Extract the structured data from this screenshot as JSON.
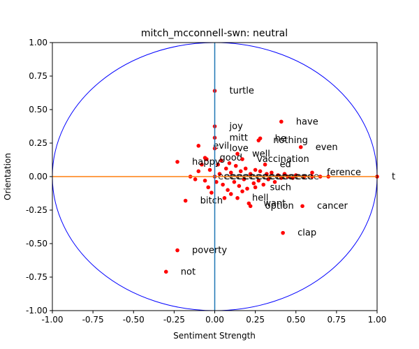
{
  "chart_data": {
    "type": "scatter",
    "title": "mitch_mcconnell-swn: neutral",
    "xlabel": "Sentiment Strength",
    "ylabel": "Orientation",
    "xlim": [
      -1.0,
      1.0
    ],
    "ylim": [
      -1.0,
      1.0
    ],
    "xticks": [
      "-1.00",
      "-0.75",
      "-0.50",
      "-0.25",
      "0.00",
      "0.25",
      "0.50",
      "0.75",
      "1.00"
    ],
    "yticks": [
      "-1.00",
      "-0.75",
      "-0.50",
      "-0.25",
      "0.00",
      "0.25",
      "0.50",
      "0.75",
      "1.00"
    ],
    "grid": false,
    "colors": {
      "points": "#ff0000",
      "circle": "#0000ff",
      "horizontal_line": "#ff7f0e",
      "vertical_line": "#1f77b4"
    },
    "labeled_points": [
      {
        "label": "turtle",
        "x": 0.0,
        "y": 0.64
      },
      {
        "label": "have",
        "x": 0.41,
        "y": 0.41
      },
      {
        "label": "joy",
        "x": 0.0,
        "y": 0.375
      },
      {
        "label": "mitt",
        "x": 0.0,
        "y": 0.29
      },
      {
        "label": "he",
        "x": 0.28,
        "y": 0.285
      },
      {
        "label": "nothing",
        "x": 0.27,
        "y": 0.27
      },
      {
        "label": "even",
        "x": 0.53,
        "y": 0.22
      },
      {
        "label": "evil",
        "x": -0.1,
        "y": 0.23
      },
      {
        "label": "love",
        "x": 0.0,
        "y": 0.21
      },
      {
        "label": "well",
        "x": 0.14,
        "y": 0.17
      },
      {
        "label": "good",
        "x": -0.06,
        "y": 0.14
      },
      {
        "label": "happy",
        "x": -0.23,
        "y": 0.11
      },
      {
        "label": "vaccination",
        "x": 0.17,
        "y": 0.13
      },
      {
        "label": "ed",
        "x": 0.31,
        "y": 0.09
      },
      {
        "label": "ference",
        "x": 0.6,
        "y": 0.03
      },
      {
        "label": "t",
        "x": 1.0,
        "y": 0.0
      },
      {
        "label": "such",
        "x": 0.25,
        "y": -0.08
      },
      {
        "label": "bitch",
        "x": -0.18,
        "y": -0.18
      },
      {
        "label": "hell",
        "x": 0.14,
        "y": -0.16
      },
      {
        "label": "want",
        "x": 0.21,
        "y": -0.2
      },
      {
        "label": "option",
        "x": 0.22,
        "y": -0.22
      },
      {
        "label": "cancer",
        "x": 0.54,
        "y": -0.22
      },
      {
        "label": "clap",
        "x": 0.42,
        "y": -0.42
      },
      {
        "label": "poverty",
        "x": -0.23,
        "y": -0.55
      },
      {
        "label": "not",
        "x": -0.3,
        "y": -0.71
      }
    ],
    "cluster_points": [
      {
        "x": 0.0,
        "y": 0.0
      },
      {
        "x": -0.03,
        "y": 0.05
      },
      {
        "x": -0.06,
        "y": -0.03
      },
      {
        "x": -0.1,
        "y": 0.04
      },
      {
        "x": -0.12,
        "y": -0.02
      },
      {
        "x": -0.04,
        "y": -0.08
      },
      {
        "x": -0.02,
        "y": -0.12
      },
      {
        "x": 0.02,
        "y": 0.09
      },
      {
        "x": 0.05,
        "y": -0.06
      },
      {
        "x": 0.07,
        "y": 0.06
      },
      {
        "x": 0.08,
        "y": -0.1
      },
      {
        "x": 0.1,
        "y": 0.03
      },
      {
        "x": 0.12,
        "y": -0.04
      },
      {
        "x": 0.13,
        "y": 0.08
      },
      {
        "x": 0.15,
        "y": -0.07
      },
      {
        "x": 0.16,
        "y": 0.04
      },
      {
        "x": 0.18,
        "y": -0.02
      },
      {
        "x": 0.19,
        "y": 0.06
      },
      {
        "x": 0.2,
        "y": -0.09
      },
      {
        "x": 0.22,
        "y": 0.02
      },
      {
        "x": 0.24,
        "y": -0.05
      },
      {
        "x": 0.25,
        "y": 0.05
      },
      {
        "x": 0.27,
        "y": -0.03
      },
      {
        "x": 0.28,
        "y": 0.04
      },
      {
        "x": 0.3,
        "y": -0.06
      },
      {
        "x": 0.32,
        "y": 0.02
      },
      {
        "x": 0.33,
        "y": -0.02
      },
      {
        "x": 0.35,
        "y": 0.03
      },
      {
        "x": 0.37,
        "y": -0.04
      },
      {
        "x": 0.39,
        "y": 0.01
      },
      {
        "x": 0.41,
        "y": -0.01
      },
      {
        "x": 0.43,
        "y": 0.02
      },
      {
        "x": 0.45,
        "y": 0.0
      },
      {
        "x": 0.48,
        "y": -0.01
      },
      {
        "x": 0.5,
        "y": 0.01
      },
      {
        "x": 0.55,
        "y": 0.0
      },
      {
        "x": 0.6,
        "y": 0.0
      },
      {
        "x": 0.65,
        "y": 0.0
      },
      {
        "x": 0.7,
        "y": 0.0
      },
      {
        "x": -0.15,
        "y": 0.0
      },
      {
        "x": -0.08,
        "y": 0.09
      },
      {
        "x": -0.05,
        "y": 0.13
      },
      {
        "x": 0.04,
        "y": 0.12
      },
      {
        "x": 0.09,
        "y": 0.1
      },
      {
        "x": 0.1,
        "y": -0.13
      },
      {
        "x": 0.06,
        "y": -0.16
      },
      {
        "x": 0.17,
        "y": -0.11
      },
      {
        "x": 0.03,
        "y": 0.02
      },
      {
        "x": 0.01,
        "y": -0.04
      }
    ]
  }
}
